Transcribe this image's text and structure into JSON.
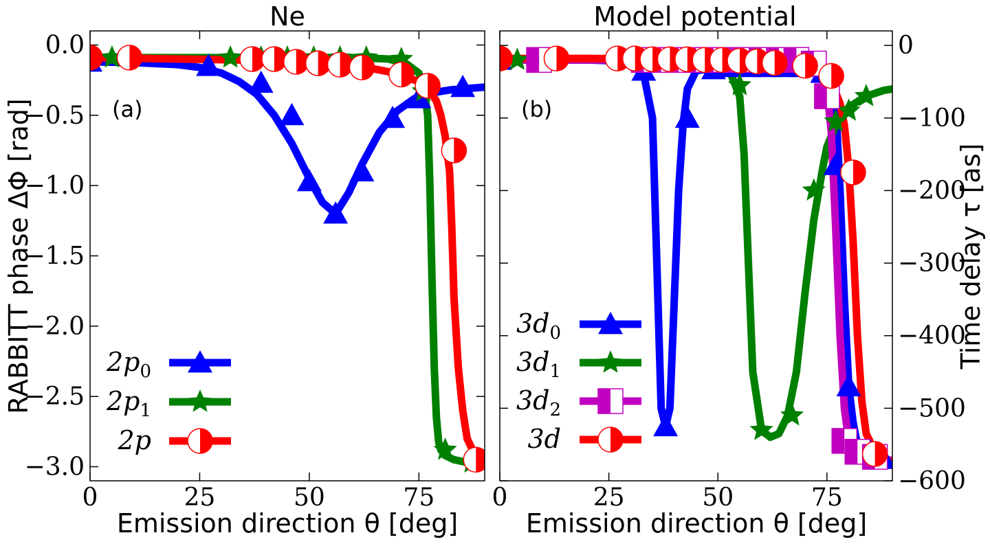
{
  "chart_data": [
    {
      "id": "ne",
      "type": "line",
      "title": "Ne",
      "panel_label": "(a)",
      "xlabel": "Emission direction θ [deg]",
      "ylabel": "RABBITT phase ΔΦ [rad]",
      "xlim": [
        0,
        90
      ],
      "ylim": [
        -3.1,
        0.1
      ],
      "xticks": [
        0,
        25,
        50,
        75
      ],
      "xtick_labels": [
        "0",
        "25",
        "50",
        "75"
      ],
      "yticks": [
        0.0,
        -0.5,
        -1.0,
        -1.5,
        -2.0,
        -2.5,
        -3.0
      ],
      "ytick_labels": [
        "0.0",
        "−0.5",
        "−1.0",
        "−1.5",
        "−2.0",
        "−2.5",
        "−3.0"
      ],
      "legend_position": "bottom-left",
      "series": [
        {
          "name": "2p0",
          "legend_main": "2p",
          "legend_sub": "0",
          "color": "#0000ff",
          "marker": "triangle",
          "curve_x": [
            0,
            10,
            20,
            25,
            30,
            34,
            38,
            42,
            46,
            50,
            53,
            56,
            59,
            62,
            66,
            70,
            74,
            78,
            82,
            86,
            90
          ],
          "curve_y": [
            -0.12,
            -0.125,
            -0.14,
            -0.16,
            -0.2,
            -0.26,
            -0.35,
            -0.5,
            -0.7,
            -0.95,
            -1.12,
            -1.2,
            -1.05,
            -0.85,
            -0.62,
            -0.47,
            -0.38,
            -0.34,
            -0.32,
            -0.31,
            -0.3
          ],
          "marker_x": [
            0,
            27,
            39,
            46,
            50,
            56,
            62,
            69,
            75,
            85
          ],
          "marker_y": [
            -0.12,
            -0.15,
            -0.27,
            -0.5,
            -0.97,
            -1.2,
            -0.9,
            -0.52,
            -0.38,
            -0.3
          ]
        },
        {
          "name": "2p1",
          "legend_main": "2p",
          "legend_sub": "1",
          "color": "#008000",
          "marker": "star",
          "curve_x": [
            0,
            20,
            40,
            60,
            68,
            72,
            75,
            76,
            77,
            77.5,
            78,
            78.5,
            79,
            79.5,
            80,
            81,
            83,
            86,
            90
          ],
          "curve_y": [
            -0.09,
            -0.09,
            -0.09,
            -0.09,
            -0.1,
            -0.13,
            -0.2,
            -0.28,
            -0.5,
            -1.0,
            -1.7,
            -2.3,
            -2.65,
            -2.82,
            -2.88,
            -2.92,
            -2.95,
            -2.97,
            -2.98
          ],
          "marker_x": [
            0,
            5,
            32,
            39,
            45,
            51,
            57,
            63,
            71,
            76,
            81,
            87
          ],
          "marker_y": [
            -0.09,
            -0.09,
            -0.09,
            -0.09,
            -0.09,
            -0.09,
            -0.09,
            -0.09,
            -0.1,
            -0.33,
            -2.88,
            -2.97
          ]
        },
        {
          "name": "2p",
          "legend_main": "2p",
          "legend_sub": "",
          "color": "#ff0000",
          "marker": "half-circle",
          "curve_x": [
            0,
            20,
            40,
            55,
            63,
            68,
            72,
            75,
            77,
            79,
            80,
            81,
            82,
            82.5,
            83,
            84,
            85,
            86,
            88,
            90
          ],
          "curve_y": [
            -0.09,
            -0.1,
            -0.11,
            -0.13,
            -0.16,
            -0.19,
            -0.23,
            -0.26,
            -0.3,
            -0.4,
            -0.5,
            -0.65,
            -0.9,
            -1.3,
            -1.8,
            -2.3,
            -2.6,
            -2.8,
            -2.93,
            -2.98
          ],
          "marker_x": [
            0,
            9,
            37,
            42,
            47,
            52,
            57,
            62,
            71,
            77,
            83,
            88
          ],
          "marker_y": [
            -0.09,
            -0.09,
            -0.1,
            -0.1,
            -0.12,
            -0.13,
            -0.14,
            -0.16,
            -0.21,
            -0.29,
            -0.75,
            -2.95
          ]
        }
      ]
    },
    {
      "id": "model",
      "type": "line",
      "title": "Model potential",
      "panel_label": "(b)",
      "xlabel": "Emission direction θ [deg]",
      "ylabel_right": "Time delay τ [as]",
      "xlim": [
        0,
        90
      ],
      "ylim": [
        -600,
        20
      ],
      "xticks": [
        0,
        25,
        50,
        75
      ],
      "xtick_labels": [
        "0",
        "25",
        "50",
        "75"
      ],
      "yticks": [
        0,
        -100,
        -200,
        -300,
        -400,
        -500,
        -600
      ],
      "ytick_labels": [
        "0",
        "−100",
        "−200",
        "−300",
        "−400",
        "−500",
        "−600"
      ],
      "legend_position": "bottom-left",
      "series": [
        {
          "name": "3d0",
          "legend_main": "3d",
          "legend_sub": "0",
          "color": "#0000ff",
          "marker": "triangle",
          "curve_x": [
            0,
            20,
            30,
            33,
            35,
            36,
            37,
            38,
            39,
            40,
            41,
            42,
            43,
            45,
            50,
            60,
            70,
            75,
            77,
            78,
            79,
            80,
            81,
            82,
            83,
            85,
            87,
            90
          ],
          "curve_y": [
            -20,
            -20,
            -22,
            -40,
            -100,
            -300,
            -500,
            -525,
            -500,
            -350,
            -200,
            -110,
            -60,
            -35,
            -30,
            -30,
            -30,
            -35,
            -80,
            -200,
            -350,
            -470,
            -520,
            -550,
            -562,
            -568,
            -572,
            -575
          ],
          "marker_x": [
            0,
            33,
            38,
            43,
            49,
            53,
            57,
            61,
            65,
            69,
            74,
            77,
            80,
            85,
            88
          ],
          "marker_y": [
            -20,
            -35,
            -525,
            -100,
            -33,
            -30,
            -30,
            -30,
            -30,
            -30,
            -38,
            -165,
            -470,
            -560,
            -570
          ],
          "lw_scale": 1
        },
        {
          "name": "3d1",
          "legend_main": "3d",
          "legend_sub": "1",
          "color": "#008000",
          "marker": "star",
          "curve_x": [
            0,
            20,
            40,
            50,
            53,
            55,
            56,
            57,
            58,
            60,
            62,
            64,
            66,
            68,
            70,
            72,
            74,
            75,
            77,
            80,
            84,
            88,
            90
          ],
          "curve_y": [
            -20,
            -20,
            -20,
            -25,
            -40,
            -70,
            -150,
            -300,
            -450,
            -530,
            -540,
            -535,
            -510,
            -450,
            -340,
            -240,
            -170,
            -140,
            -110,
            -85,
            -70,
            -62,
            -60
          ],
          "marker_x": [
            0,
            4,
            34,
            40,
            46,
            55,
            60,
            67,
            72,
            77,
            80,
            84
          ],
          "marker_y": [
            -20,
            -20,
            -20,
            -20,
            -20,
            -55,
            -530,
            -510,
            -200,
            -105,
            -90,
            -70
          ]
        },
        {
          "name": "3d2",
          "legend_main": "3d",
          "legend_sub": "2",
          "color": "#c000c0",
          "marker": "half-square",
          "curve_x": [
            0,
            20,
            40,
            60,
            70,
            73,
            75,
            76,
            77,
            78,
            79,
            80,
            82,
            85,
            90
          ],
          "curve_y": [
            -20,
            -20,
            -20,
            -20,
            -25,
            -35,
            -60,
            -120,
            -250,
            -400,
            -500,
            -545,
            -560,
            -567,
            -572
          ],
          "marker_x": [
            9,
            33,
            37,
            41,
            45,
            49,
            53,
            56,
            60,
            64,
            68,
            72,
            75,
            79,
            82,
            86
          ],
          "marker_y": [
            -20,
            -20,
            -20,
            -20,
            -20,
            -20,
            -20,
            -20,
            -20,
            -20,
            -20,
            -25,
            -70,
            -545,
            -560,
            -567
          ]
        },
        {
          "name": "3d",
          "legend_main": "3d",
          "legend_sub": "",
          "color": "#ff0000",
          "marker": "half-circle",
          "curve_x": [
            0,
            20,
            40,
            55,
            65,
            70,
            74,
            76,
            78,
            79,
            80,
            81,
            82,
            83,
            84,
            86,
            88,
            90
          ],
          "curve_y": [
            -18,
            -18,
            -19,
            -20,
            -23,
            -28,
            -38,
            -50,
            -80,
            -110,
            -170,
            -270,
            -400,
            -490,
            -535,
            -560,
            -570,
            -575
          ],
          "marker_x": [
            0,
            13,
            27,
            31,
            35,
            39,
            43,
            47,
            51,
            55,
            59,
            63,
            70,
            76,
            81,
            86
          ],
          "marker_y": [
            -18,
            -18,
            -18,
            -18,
            -19,
            -19,
            -19,
            -20,
            -20,
            -21,
            -22,
            -24,
            -28,
            -42,
            -175,
            -563
          ]
        }
      ]
    }
  ]
}
